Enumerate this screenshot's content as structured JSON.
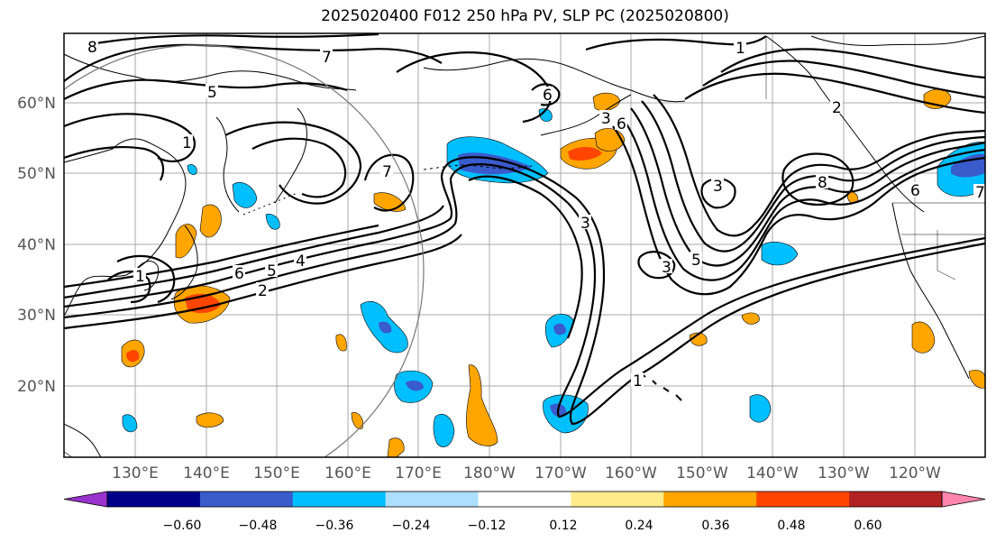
{
  "title": "2025020400 F012 250 hPa PV, SLP PC (2025020800)",
  "lat_labels": [
    "60°N",
    "50°N",
    "40°N",
    "30°N",
    "20°N"
  ],
  "lon_labels": [
    "130°E",
    "140°E",
    "150°E",
    "160°E",
    "170°E",
    "180°W",
    "170°W",
    "160°W",
    "150°W",
    "140°W",
    "130°W",
    "120°W"
  ],
  "contour_labels": [
    "8",
    "7",
    "5",
    "6",
    "1",
    "2",
    "3",
    "4",
    "5",
    "6",
    "7",
    "1",
    "6",
    "3",
    "8",
    "7",
    "3",
    "5",
    "1",
    "2",
    "6",
    "1",
    "3"
  ],
  "colorbar": {
    "colors": [
      "#9932CC",
      "#00008B",
      "#3A5BCC",
      "#00BFFF",
      "#ADDFFF",
      "#FFFFFF",
      "#FFEB8A",
      "#FFA500",
      "#FF4500",
      "#B22222",
      "#FF85AE"
    ],
    "tick_labels": [
      "−0.60",
      "−0.48",
      "−0.36",
      "−0.24",
      "−0.12",
      "0.12",
      "0.24",
      "0.36",
      "0.48",
      "0.60"
    ]
  }
}
